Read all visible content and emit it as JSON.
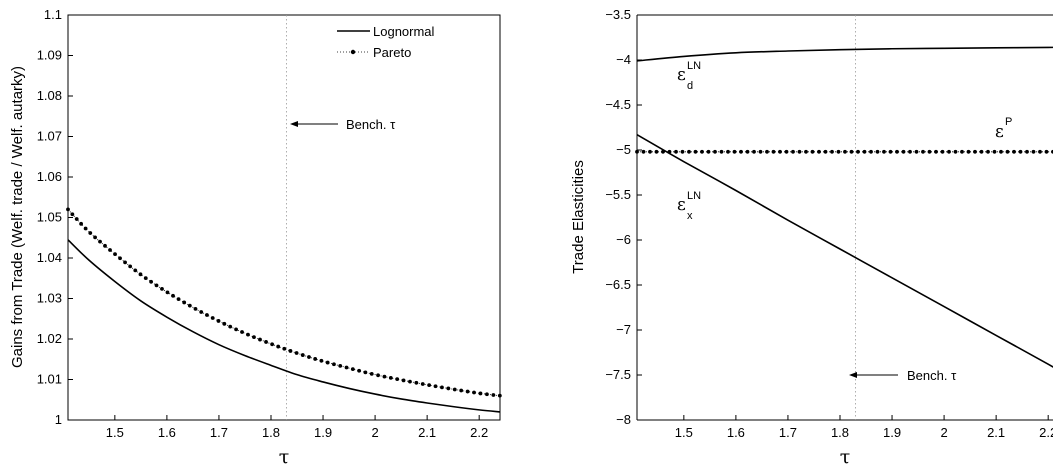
{
  "chart_data": [
    {
      "type": "line",
      "xlabel": "τ",
      "ylabel": "Gains from Trade (Welf. trade / Welf. autarky)",
      "xlim": [
        1.41,
        2.24
      ],
      "ylim": [
        1.0,
        1.1
      ],
      "xticks": [
        "1.5",
        "1.6",
        "1.7",
        "1.8",
        "1.9",
        "2",
        "2.1",
        "2.2"
      ],
      "yticks": [
        "1",
        "1.01",
        "1.02",
        "1.03",
        "1.04",
        "1.05",
        "1.06",
        "1.07",
        "1.08",
        "1.09",
        "1.1"
      ],
      "grid": false,
      "legend": "top-right",
      "series": [
        {
          "name": "Lognormal",
          "style": "solid",
          "x": [
            1.41,
            1.45,
            1.5,
            1.55,
            1.6,
            1.65,
            1.7,
            1.75,
            1.8,
            1.85,
            1.9,
            1.95,
            2.0,
            2.05,
            2.1,
            2.15,
            2.2,
            2.24
          ],
          "y": [
            1.0445,
            1.0395,
            1.0342,
            1.0294,
            1.0254,
            1.0218,
            1.0186,
            1.0159,
            1.0135,
            1.0112,
            1.0094,
            1.0078,
            1.0064,
            1.0052,
            1.0042,
            1.0033,
            1.0025,
            1.002
          ]
        },
        {
          "name": "Pareto",
          "style": "dotted-markers",
          "x": [
            1.41,
            1.45,
            1.5,
            1.55,
            1.6,
            1.65,
            1.7,
            1.75,
            1.8,
            1.85,
            1.9,
            1.95,
            2.0,
            2.05,
            2.1,
            2.15,
            2.2,
            2.24
          ],
          "y": [
            1.052,
            1.0465,
            1.041,
            1.0359,
            1.0316,
            1.0278,
            1.0244,
            1.0214,
            1.0188,
            1.0165,
            1.0145,
            1.0128,
            1.0112,
            1.0099,
            1.0087,
            1.0076,
            1.0066,
            1.006
          ]
        }
      ],
      "annotations": [
        {
          "text": "Bench. τ",
          "x": 1.83,
          "y": 1.072
        }
      ],
      "benchmark_tau": 1.83
    },
    {
      "type": "line",
      "xlabel": "τ",
      "ylabel": "Trade Elasticities",
      "xlim": [
        1.41,
        2.24
      ],
      "ylim": [
        -8,
        -3.5
      ],
      "xticks": [
        "1.5",
        "1.6",
        "1.7",
        "1.8",
        "1.9",
        "2",
        "2.1",
        "2.2"
      ],
      "yticks": [
        "−3.5",
        "−4",
        "−4.5",
        "−5",
        "−5.5",
        "−6",
        "−6.5",
        "−7",
        "−7.5",
        "−8"
      ],
      "grid": false,
      "series": [
        {
          "label": "εd LN",
          "style": "solid",
          "x": [
            1.41,
            1.5,
            1.6,
            1.7,
            1.8,
            1.9,
            2.0,
            2.1,
            2.2,
            2.24
          ],
          "y": [
            -4.01,
            -3.96,
            -3.92,
            -3.9,
            -3.885,
            -3.875,
            -3.87,
            -3.865,
            -3.86,
            -3.86
          ]
        },
        {
          "label": "εP",
          "style": "dotted-markers",
          "x": [
            1.41,
            2.24
          ],
          "y": [
            -5.02,
            -5.02
          ]
        },
        {
          "label": "εx LN",
          "style": "solid",
          "x": [
            1.41,
            1.5,
            1.6,
            1.7,
            1.8,
            1.9,
            2.0,
            2.1,
            2.2,
            2.24
          ],
          "y": [
            -4.83,
            -5.13,
            -5.45,
            -5.78,
            -6.1,
            -6.42,
            -6.74,
            -7.06,
            -7.38,
            -7.51
          ]
        }
      ],
      "annotations": [
        {
          "text": "Bench. τ",
          "x": 1.83,
          "y": -7.5
        },
        {
          "text": "ε",
          "sub": "d",
          "sup": "LN"
        },
        {
          "text": "ε",
          "sub": "x",
          "sup": "LN"
        },
        {
          "text": "ε",
          "sup": "P"
        }
      ],
      "benchmark_tau": 1.83
    }
  ],
  "labels": {
    "bench_left": "Bench. τ",
    "bench_right": "Bench. τ",
    "eps": "ε",
    "sup_ln": "LN",
    "sub_d": "d",
    "sub_x": "x",
    "sup_p": "P",
    "legend_lognormal": "Lognormal",
    "legend_pareto": "Pareto"
  }
}
